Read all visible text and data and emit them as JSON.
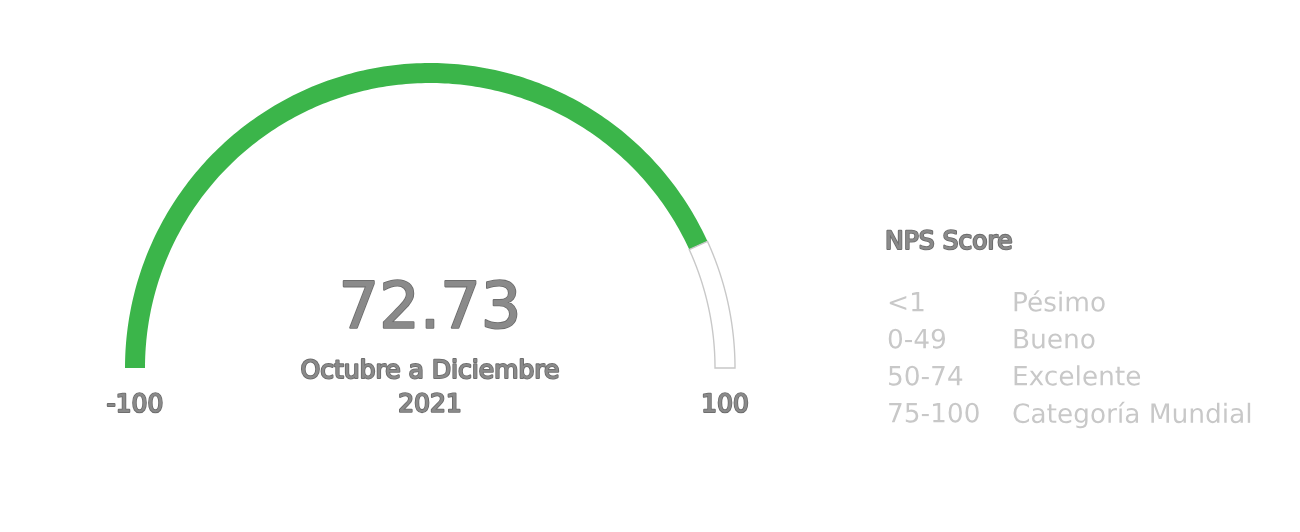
{
  "chart_data": {
    "type": "donut",
    "categories": [
      null,
      null
    ],
    "values": [
      86.365,
      13.635
    ],
    "colors": [
      "#3bb54a",
      "#ffffff"
    ],
    "subtitle": "Octubre a Diciembre\n2021",
    "legend_title": "NPS Score",
    "annotations": [
      "72.73",
      "-100",
      "100",
      "<1",
      "Pésimo",
      "0-49",
      "Bueno",
      "50-74",
      "Excelente",
      "75-100",
      "Categoría Mundial"
    ]
  }
}
